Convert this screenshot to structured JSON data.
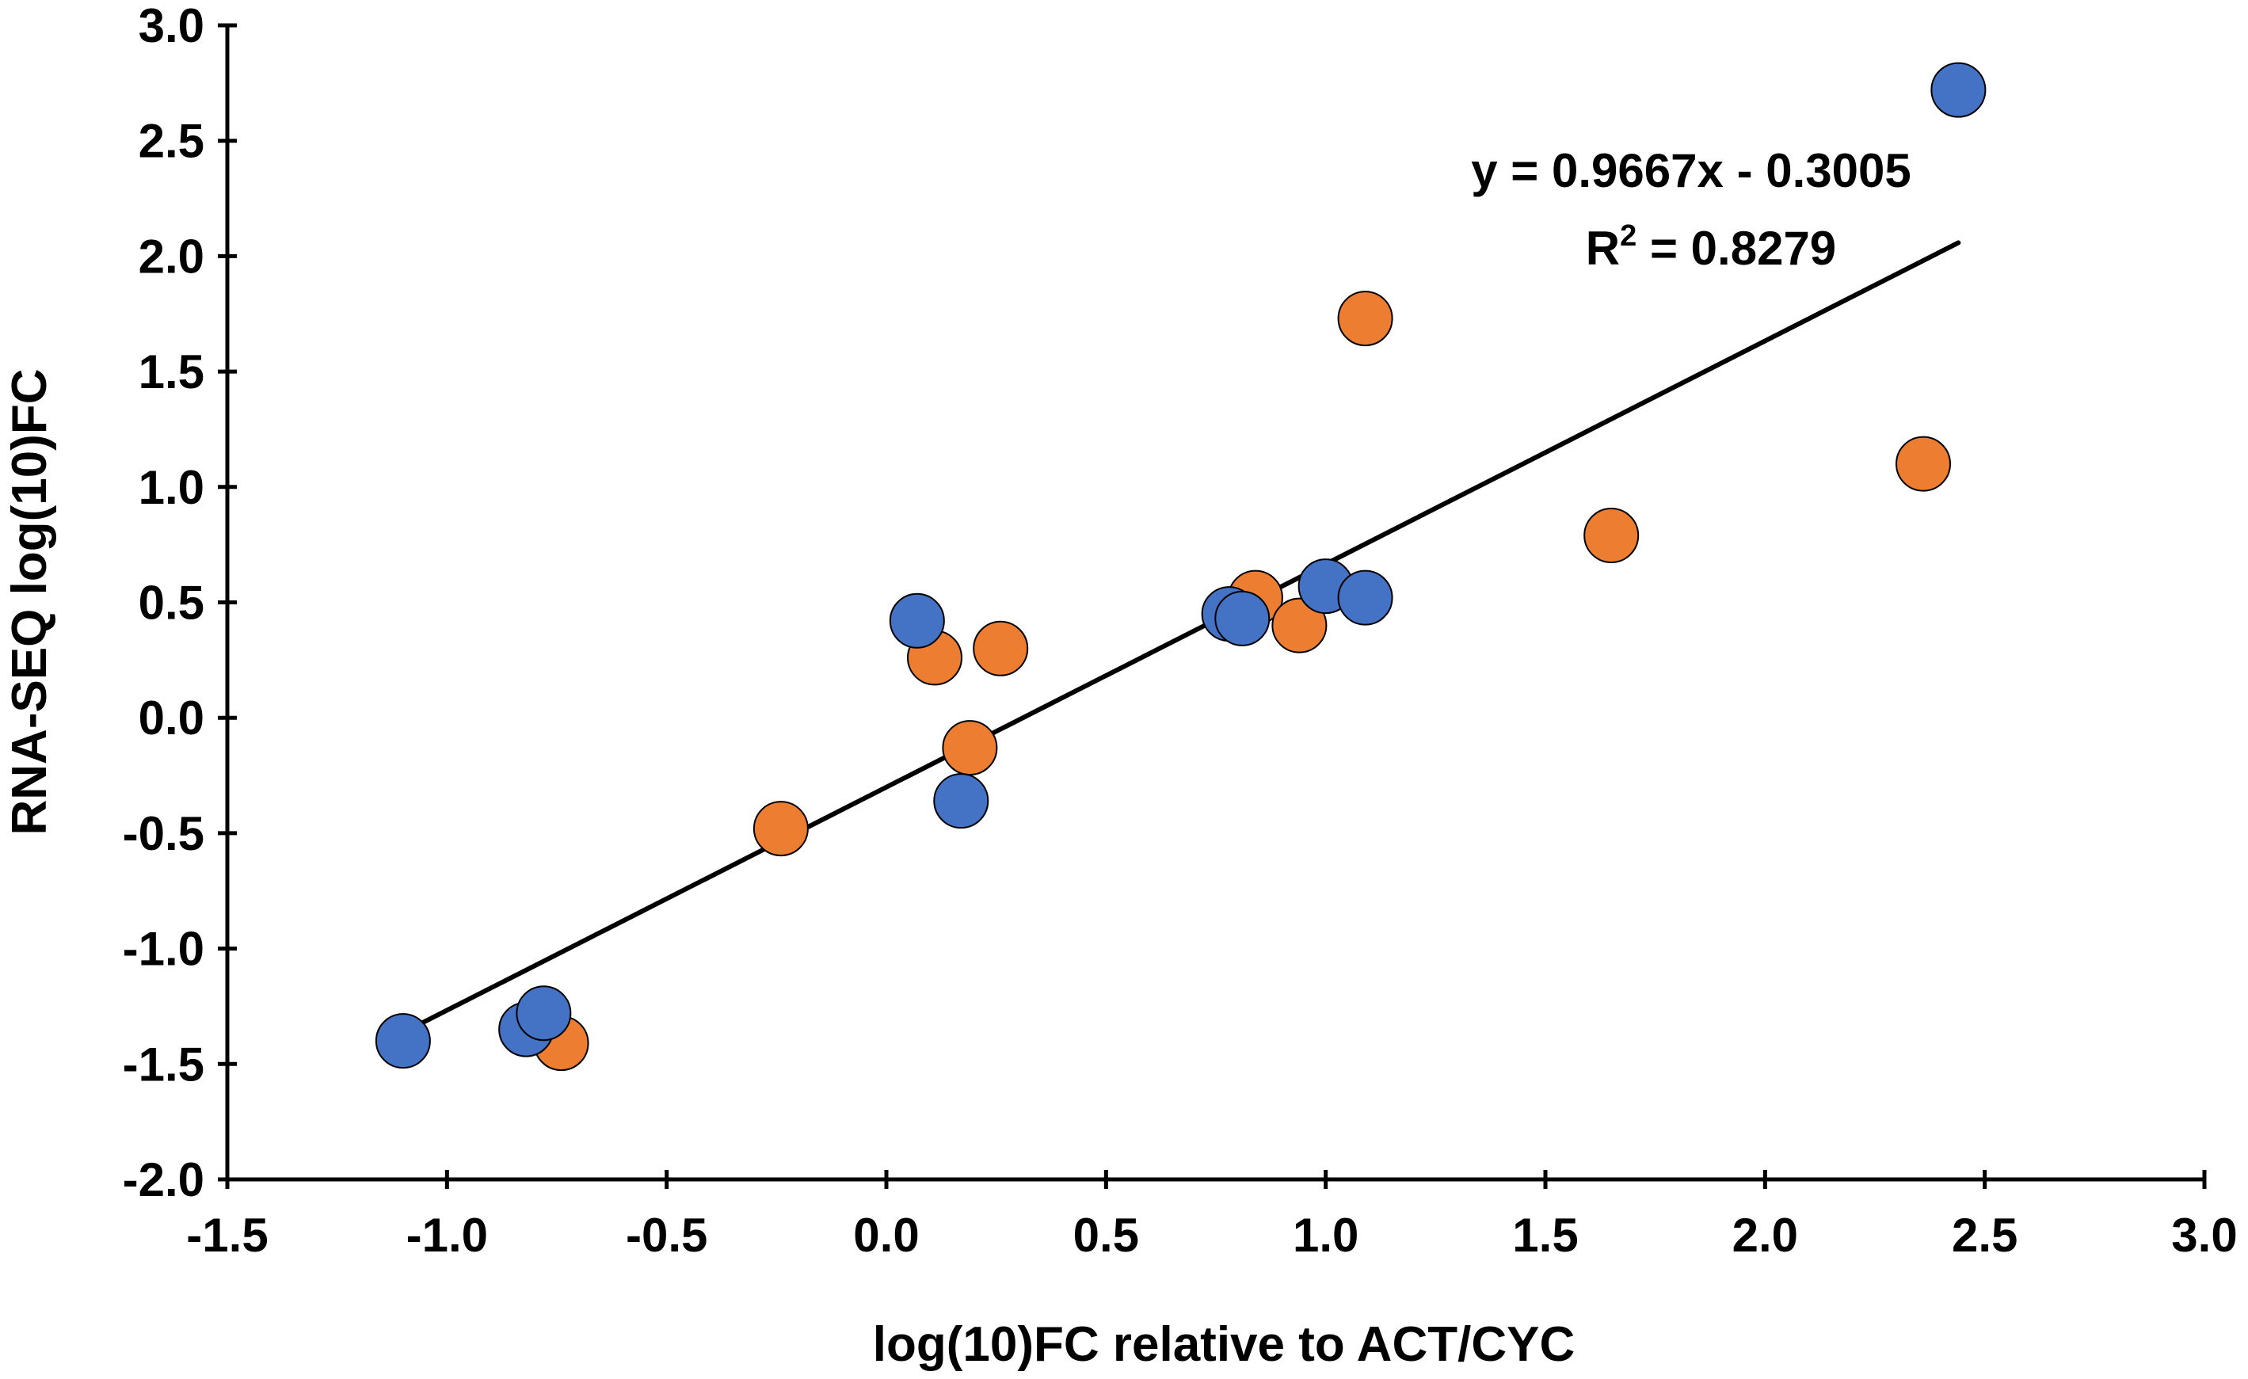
{
  "chart_data": {
    "type": "scatter",
    "title": "",
    "xlabel": "log(10)FC relative to ACT/CYC",
    "ylabel": "RNA-SEQ log(10)FC",
    "xlim": [
      -1.5,
      3.0
    ],
    "ylim": [
      -2.0,
      3.0
    ],
    "x_ticks": [
      -1.5,
      -1.0,
      -0.5,
      0.0,
      0.5,
      1.0,
      1.5,
      2.0,
      2.5,
      3.0
    ],
    "x_tick_labels": [
      "-1.5",
      "-1.0",
      "-0.5",
      "0.0",
      "0.5",
      "1.0",
      "1.5",
      "2.0",
      "2.5",
      "3.0"
    ],
    "y_ticks": [
      3.0,
      2.5,
      2.0,
      1.5,
      1.0,
      0.5,
      0.0,
      -0.5,
      -1.0,
      -1.5,
      -2.0
    ],
    "y_tick_labels": [
      "3.0",
      "2.5",
      "2.0",
      "1.5",
      "1.0",
      "0.5",
      "0.0",
      "-0.5",
      "-1.0",
      "-1.5",
      "-2.0"
    ],
    "grid": false,
    "legend": null,
    "series": [
      {
        "name": "orange",
        "color": "#ED7D31",
        "points": [
          {
            "x": -0.74,
            "y": -1.41
          },
          {
            "x": -0.24,
            "y": -0.48
          },
          {
            "x": 0.11,
            "y": 0.26
          },
          {
            "x": 0.26,
            "y": 0.3
          },
          {
            "x": 0.19,
            "y": -0.13
          },
          {
            "x": 0.84,
            "y": 0.52
          },
          {
            "x": 0.94,
            "y": 0.4
          },
          {
            "x": 1.09,
            "y": 1.73
          },
          {
            "x": 1.65,
            "y": 0.79
          },
          {
            "x": 2.36,
            "y": 1.1
          }
        ]
      },
      {
        "name": "blue",
        "color": "#4472C4",
        "points": [
          {
            "x": -1.1,
            "y": -1.4
          },
          {
            "x": -0.82,
            "y": -1.35
          },
          {
            "x": -0.78,
            "y": -1.28
          },
          {
            "x": 0.07,
            "y": 0.42
          },
          {
            "x": 0.17,
            "y": -0.36
          },
          {
            "x": 0.78,
            "y": 0.45
          },
          {
            "x": 0.81,
            "y": 0.43
          },
          {
            "x": 1.0,
            "y": 0.57
          },
          {
            "x": 1.09,
            "y": 0.52
          },
          {
            "x": 2.44,
            "y": 2.72
          }
        ]
      }
    ],
    "trendline": {
      "slope": 0.9667,
      "intercept": -0.3005,
      "x_range": [
        -1.1,
        2.44
      ],
      "color": "#000000"
    },
    "annotations": {
      "equation": "y = 0.9667x - 0.3005",
      "r_squared_prefix": "R",
      "r_squared_sup": "2",
      "r_squared_rest": " = 0.8279"
    }
  }
}
